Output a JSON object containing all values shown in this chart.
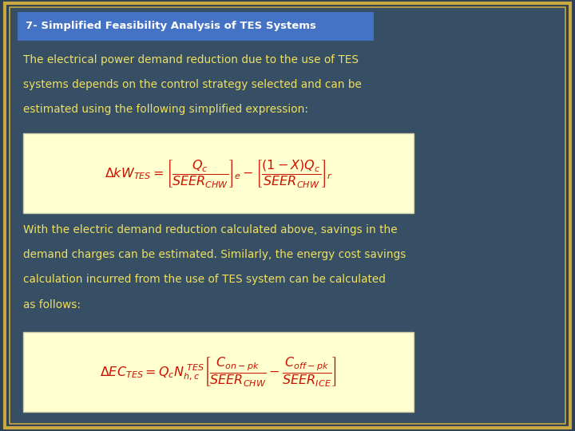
{
  "title": "7- Simplified Feasibility Analysis of TES Systems",
  "title_bg": "#4472c4",
  "title_color": "#ffffff",
  "bg_color_outer": "#2d3f52",
  "border_color": "#c8a840",
  "text_color": "#f0e060",
  "formula_bg": "#ffffd0",
  "formula_color": "#cc1100",
  "para1_lines": [
    "The electrical power demand reduction due to the use of TES",
    "systems depends on the control strategy selected and can be",
    "estimated using the following simplified expression:"
  ],
  "para2_lines": [
    "With the electric demand reduction calculated above, savings in the",
    "demand charges can be estimated. Similarly, the energy cost savings",
    "calculation incurred from the use of TES system can be calculated",
    "as follows:"
  ]
}
